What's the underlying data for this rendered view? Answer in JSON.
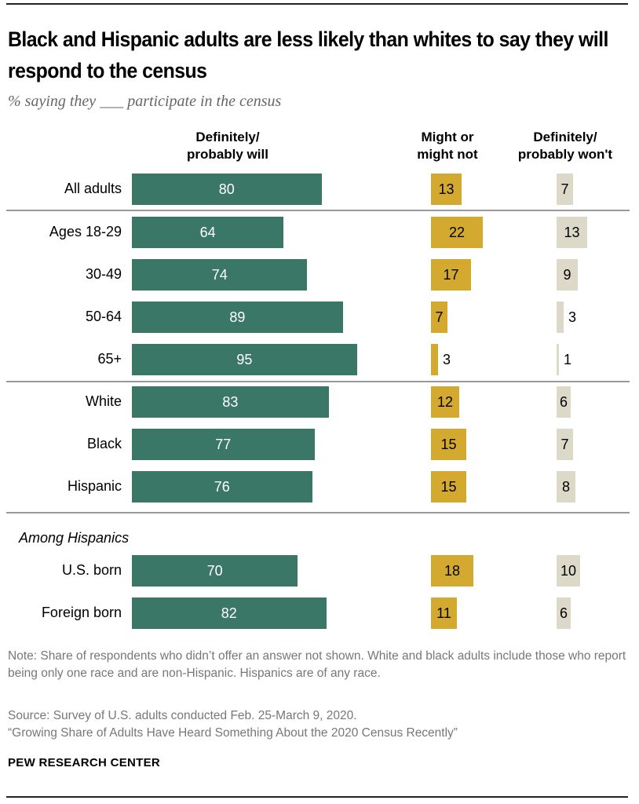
{
  "chart_data": {
    "type": "bar",
    "orientation": "horizontal",
    "stacked": false,
    "title": "Black and Hispanic adults are less likely than whites to say they will respond to the census",
    "subtitle": "% saying they ___ participate in the census",
    "categories": [
      "All adults",
      "Ages 18-29",
      "30-49",
      "50-64",
      "65+",
      "White",
      "Black",
      "Hispanic",
      "U.S. born",
      "Foreign born"
    ],
    "section_label": "Among Hispanics",
    "series": [
      {
        "name": "Definitely/ probably will",
        "color": "#3b7766",
        "values": [
          80,
          64,
          74,
          89,
          95,
          83,
          77,
          76,
          70,
          82
        ]
      },
      {
        "name": "Might or might not",
        "color": "#d4a92f",
        "values": [
          13,
          22,
          17,
          7,
          3,
          12,
          15,
          15,
          18,
          11
        ]
      },
      {
        "name": "Definitely/ probably won't",
        "color": "#dcd9c8",
        "values": [
          7,
          13,
          9,
          3,
          1,
          6,
          7,
          8,
          10,
          6
        ]
      }
    ],
    "series_headers": [
      [
        "Definitely/",
        "probably will"
      ],
      [
        "Might or",
        "might not"
      ],
      [
        "Definitely/",
        "probably won't"
      ]
    ],
    "grid": false
  },
  "notes": {
    "note": "Note: Share of respondents who didn’t offer an answer not shown. White and black adults include those who report being only one race and are non-Hispanic. Hispanics are of any race.",
    "source": "Source: Survey of U.S. adults conducted Feb. 25-March 9, 2020.",
    "report": "“Growing Share of Adults Have Heard Something About the 2020 Census Recently”",
    "brand": "PEW RESEARCH CENTER"
  }
}
